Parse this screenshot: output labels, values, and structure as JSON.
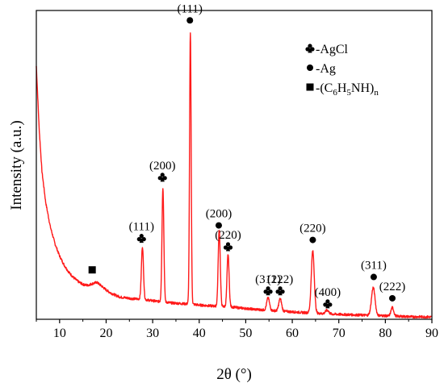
{
  "chart_data": {
    "type": "line",
    "title": "",
    "xlabel": "2θ (°)",
    "ylabel": "Intensity (a.u.)",
    "xlim": [
      5,
      90
    ],
    "xticks": [
      10,
      20,
      30,
      40,
      50,
      60,
      70,
      80,
      90
    ],
    "ylim": [
      0,
      1
    ],
    "yticks_shown": false,
    "grid": false,
    "colors": {
      "line": "#ff1a1a",
      "axes": "#000000"
    },
    "series": [
      {
        "x": [
          5,
          5.6,
          6.2,
          7,
          8,
          9,
          10,
          11,
          12,
          13,
          14,
          15,
          16,
          17,
          18,
          19,
          20,
          21,
          22,
          23,
          24,
          25,
          26,
          27,
          28,
          29,
          30,
          31,
          32,
          33,
          34,
          35,
          36,
          37,
          38,
          39,
          40,
          41,
          42,
          43,
          44,
          45,
          46,
          47,
          48,
          50,
          52,
          54,
          55,
          56,
          57,
          58,
          60,
          62,
          64,
          64.4,
          65,
          66,
          67,
          68,
          70,
          72,
          74,
          76,
          77,
          77.5,
          78,
          79,
          80,
          81,
          81.5,
          82,
          84,
          86,
          88,
          90
        ],
        "values": [
          0.82,
          0.62,
          0.48,
          0.38,
          0.3,
          0.245,
          0.205,
          0.175,
          0.152,
          0.135,
          0.122,
          0.113,
          0.11,
          0.115,
          0.12,
          0.108,
          0.095,
          0.085,
          0.078,
          0.072,
          0.07,
          0.068,
          0.066,
          0.066,
          0.065,
          0.062,
          0.06,
          0.058,
          0.057,
          0.055,
          0.053,
          0.052,
          0.051,
          0.05,
          0.05,
          0.048,
          0.046,
          0.045,
          0.044,
          0.043,
          0.042,
          0.041,
          0.041,
          0.04,
          0.038,
          0.035,
          0.032,
          0.03,
          0.029,
          0.028,
          0.027,
          0.026,
          0.024,
          0.022,
          0.021,
          0.021,
          0.02,
          0.019,
          0.018,
          0.017,
          0.016,
          0.015,
          0.014,
          0.013,
          0.013,
          0.013,
          0.012,
          0.012,
          0.011,
          0.01,
          0.01,
          0.01,
          0.009,
          0.008,
          0.008,
          0.007
        ]
      }
    ],
    "peaks": [
      {
        "x": 27.8,
        "height": 0.17,
        "width": 0.22
      },
      {
        "x": 32.2,
        "height": 0.37,
        "width": 0.2
      },
      {
        "x": 38.1,
        "height": 0.88,
        "width": 0.17
      },
      {
        "x": 44.3,
        "height": 0.25,
        "width": 0.22
      },
      {
        "x": 46.2,
        "height": 0.17,
        "width": 0.22
      },
      {
        "x": 54.8,
        "height": 0.04,
        "width": 0.3
      },
      {
        "x": 57.4,
        "height": 0.04,
        "width": 0.3
      },
      {
        "x": 64.4,
        "height": 0.2,
        "width": 0.32
      },
      {
        "x": 67.5,
        "height": 0.012,
        "width": 0.35
      },
      {
        "x": 77.4,
        "height": 0.09,
        "width": 0.38
      },
      {
        "x": 81.5,
        "height": 0.028,
        "width": 0.3
      }
    ],
    "annotations": [
      {
        "x": 17,
        "y": 0.16,
        "marker": "square",
        "label": ""
      },
      {
        "x": 27.6,
        "y": 0.262,
        "marker": "club",
        "label": "(111)"
      },
      {
        "x": 32.1,
        "y": 0.46,
        "marker": "club",
        "label": "(200)"
      },
      {
        "x": 38.0,
        "y": 0.968,
        "marker": "circle",
        "label": "(111)"
      },
      {
        "x": 44.2,
        "y": 0.304,
        "marker": "circle",
        "label": "(200)"
      },
      {
        "x": 46.2,
        "y": 0.235,
        "marker": "club",
        "label": "(220)"
      },
      {
        "x": 54.8,
        "y": 0.092,
        "marker": "club",
        "label": "(311)"
      },
      {
        "x": 57.4,
        "y": 0.092,
        "marker": "club",
        "label": "(222)"
      },
      {
        "x": 64.4,
        "y": 0.257,
        "marker": "circle",
        "label": "(220)"
      },
      {
        "x": 67.6,
        "y": 0.05,
        "marker": "club",
        "label": "(400)"
      },
      {
        "x": 77.5,
        "y": 0.137,
        "marker": "circle",
        "label": "(311)"
      },
      {
        "x": 81.5,
        "y": 0.068,
        "marker": "circle",
        "label": "(222)"
      }
    ],
    "legend": {
      "placement": "top-right",
      "entries": [
        {
          "marker": "club",
          "text": "-AgCl"
        },
        {
          "marker": "circle",
          "text": "-Ag"
        },
        {
          "marker": "square",
          "text": "-(C",
          "sub1": "6",
          "mid1": "H",
          "sub2": "5",
          "mid2": "NH)",
          "sub3": "n"
        }
      ]
    }
  }
}
